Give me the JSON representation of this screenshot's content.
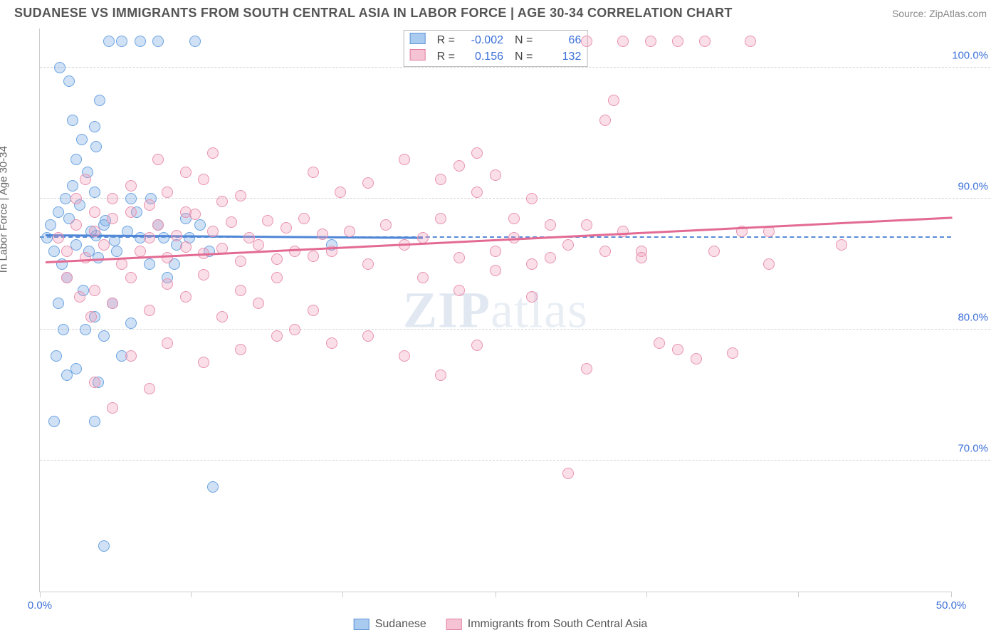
{
  "title": "SUDANESE VS IMMIGRANTS FROM SOUTH CENTRAL ASIA IN LABOR FORCE | AGE 30-34 CORRELATION CHART",
  "source": "Source: ZipAtlas.com",
  "ylabel": "In Labor Force | Age 30-34",
  "watermark_a": "ZIP",
  "watermark_b": "atlas",
  "chart": {
    "type": "scatter",
    "xlim": [
      0,
      50
    ],
    "ylim": [
      60,
      103
    ],
    "x_ticks": [
      0,
      8.3,
      16.6,
      25,
      33.3,
      41.6,
      50
    ],
    "x_tick_labels": {
      "0": "0.0%",
      "50": "50.0%"
    },
    "y_ticks": [
      70,
      80,
      90,
      100
    ],
    "y_tick_labels": {
      "70": "70.0%",
      "80": "80.0%",
      "90": "90.0%",
      "100": "100.0%"
    },
    "reference_y": 87,
    "background_color": "#ffffff",
    "grid_color": "#d5d5d5",
    "series": [
      {
        "name": "Sudanese",
        "label": "Sudanese",
        "color_fill": "rgba(120,170,230,0.35)",
        "color_stroke": "#6aa3e0",
        "swatch_fill": "#a9cbef",
        "swatch_border": "#5f95d6",
        "R": "-0.002",
        "N": "66",
        "trend": {
          "x0": 0.3,
          "y0": 87.3,
          "x1": 21,
          "y1": 87.1,
          "color": "#4f86d6"
        },
        "points": [
          [
            0.4,
            87
          ],
          [
            0.6,
            88
          ],
          [
            0.8,
            86
          ],
          [
            1.0,
            89
          ],
          [
            1.2,
            85
          ],
          [
            1.4,
            90
          ],
          [
            1.5,
            84
          ],
          [
            1.6,
            88.5
          ],
          [
            1.8,
            91
          ],
          [
            2.0,
            86.5
          ],
          [
            2.2,
            89.5
          ],
          [
            2.4,
            83
          ],
          [
            2.6,
            92
          ],
          [
            2.8,
            87.5
          ],
          [
            3.0,
            90.5
          ],
          [
            3.2,
            85.5
          ],
          [
            3.5,
            88
          ],
          [
            3.8,
            102
          ],
          [
            4.5,
            102
          ],
          [
            5.5,
            102
          ],
          [
            6.5,
            102
          ],
          [
            8.5,
            102
          ],
          [
            3.3,
            97.5
          ],
          [
            3.0,
            95.5
          ],
          [
            3.1,
            94
          ],
          [
            2.5,
            80
          ],
          [
            3.0,
            81
          ],
          [
            3.5,
            79.5
          ],
          [
            2.0,
            77
          ],
          [
            3.2,
            76
          ],
          [
            5.0,
            90
          ],
          [
            5.5,
            87
          ],
          [
            6.0,
            85
          ],
          [
            6.5,
            88
          ],
          [
            7.0,
            84
          ],
          [
            7.5,
            86.5
          ],
          [
            8.0,
            88.5
          ],
          [
            4.0,
            82
          ],
          [
            4.5,
            78
          ],
          [
            5.0,
            80.5
          ],
          [
            9.5,
            68
          ],
          [
            3.5,
            63.5
          ],
          [
            1.0,
            82
          ],
          [
            1.3,
            80
          ],
          [
            0.9,
            78
          ],
          [
            1.5,
            76.5
          ],
          [
            2.0,
            93
          ],
          [
            2.3,
            94.5
          ],
          [
            1.8,
            96
          ],
          [
            4.2,
            86
          ],
          [
            4.8,
            87.5
          ],
          [
            5.3,
            89
          ],
          [
            6.1,
            90
          ],
          [
            6.8,
            87
          ],
          [
            7.4,
            85
          ],
          [
            3.0,
            73
          ],
          [
            0.8,
            73
          ],
          [
            8.2,
            87
          ],
          [
            8.8,
            88
          ],
          [
            9.3,
            86
          ],
          [
            1.1,
            100
          ],
          [
            1.6,
            99
          ],
          [
            16,
            86.5
          ],
          [
            2.7,
            86
          ],
          [
            3.1,
            87.2
          ],
          [
            3.6,
            88.3
          ],
          [
            4.1,
            86.8
          ]
        ]
      },
      {
        "name": "Immigrants from South Central Asia",
        "label": "Immigrants from South Central Asia",
        "color_fill": "rgba(240,150,180,0.30)",
        "color_stroke": "#e892b0",
        "swatch_fill": "#f5c3d4",
        "swatch_border": "#e27fa4",
        "R": "0.156",
        "N": "132",
        "trend": {
          "x0": 0.3,
          "y0": 85.2,
          "x1": 50,
          "y1": 88.6,
          "color": "#e36a93"
        },
        "points": [
          [
            1,
            87
          ],
          [
            1.5,
            86
          ],
          [
            2,
            88
          ],
          [
            2.5,
            85.5
          ],
          [
            3,
            87.5
          ],
          [
            3.5,
            86.5
          ],
          [
            4,
            88.5
          ],
          [
            4.5,
            85
          ],
          [
            5,
            89
          ],
          [
            5.5,
            86
          ],
          [
            6,
            87
          ],
          [
            6.5,
            88
          ],
          [
            7,
            85.5
          ],
          [
            7.5,
            87.2
          ],
          [
            8,
            86.3
          ],
          [
            8.5,
            88.8
          ],
          [
            9,
            85.8
          ],
          [
            9.5,
            87.5
          ],
          [
            10,
            86.2
          ],
          [
            10.5,
            88.2
          ],
          [
            11,
            85.2
          ],
          [
            11.5,
            87
          ],
          [
            12,
            86.5
          ],
          [
            12.5,
            88.3
          ],
          [
            13,
            85.4
          ],
          [
            13.5,
            87.8
          ],
          [
            14,
            86
          ],
          [
            14.5,
            88.5
          ],
          [
            15,
            85.6
          ],
          [
            15.5,
            87.3
          ],
          [
            3,
            83
          ],
          [
            4,
            82
          ],
          [
            5,
            84
          ],
          [
            6,
            81.5
          ],
          [
            7,
            83.5
          ],
          [
            8,
            82.5
          ],
          [
            9,
            84.2
          ],
          [
            10,
            81
          ],
          [
            11,
            83
          ],
          [
            12,
            82
          ],
          [
            13,
            84
          ],
          [
            4,
            90
          ],
          [
            5,
            91
          ],
          [
            6,
            89.5
          ],
          [
            7,
            90.5
          ],
          [
            8,
            89
          ],
          [
            9,
            91.5
          ],
          [
            10,
            89.8
          ],
          [
            11,
            90.2
          ],
          [
            16,
            86
          ],
          [
            17,
            87.5
          ],
          [
            18,
            85
          ],
          [
            19,
            88
          ],
          [
            20,
            86.5
          ],
          [
            21,
            87
          ],
          [
            22,
            88.5
          ],
          [
            23,
            85.5
          ],
          [
            20,
            93
          ],
          [
            22,
            91.5
          ],
          [
            23,
            92.5
          ],
          [
            24,
            90.5
          ],
          [
            25,
            91.8
          ],
          [
            5,
            78
          ],
          [
            7,
            79
          ],
          [
            9,
            77.5
          ],
          [
            11,
            78.5
          ],
          [
            13,
            79.5
          ],
          [
            25,
            86
          ],
          [
            26,
            87
          ],
          [
            27,
            85
          ],
          [
            28,
            88
          ],
          [
            29,
            86.5
          ],
          [
            30,
            102
          ],
          [
            32,
            102
          ],
          [
            33.5,
            102
          ],
          [
            35,
            102
          ],
          [
            36.5,
            102
          ],
          [
            39,
            102
          ],
          [
            31,
            96
          ],
          [
            33,
            86
          ],
          [
            30,
            77
          ],
          [
            18,
            79.5
          ],
          [
            20,
            78
          ],
          [
            22,
            76.5
          ],
          [
            24,
            78.8
          ],
          [
            34,
            79
          ],
          [
            35,
            78.5
          ],
          [
            36,
            77.8
          ],
          [
            38,
            78.2
          ],
          [
            44,
            86.5
          ],
          [
            40,
            87.5
          ],
          [
            29,
            69
          ],
          [
            31.5,
            97.5
          ],
          [
            3,
            76
          ],
          [
            4,
            74
          ],
          [
            6,
            75.5
          ],
          [
            14,
            80
          ],
          [
            15,
            81.5
          ],
          [
            16,
            79
          ],
          [
            2,
            90
          ],
          [
            2.5,
            91.5
          ],
          [
            3,
            89
          ],
          [
            37,
            86
          ],
          [
            38.5,
            87.5
          ],
          [
            40,
            85
          ],
          [
            24,
            93.5
          ],
          [
            26,
            88.5
          ],
          [
            27,
            90
          ],
          [
            28,
            85.5
          ],
          [
            15,
            92
          ],
          [
            16.5,
            90.5
          ],
          [
            18,
            91.2
          ],
          [
            21,
            84
          ],
          [
            23,
            83
          ],
          [
            25,
            84.5
          ],
          [
            27,
            82.5
          ],
          [
            30,
            88
          ],
          [
            31,
            86
          ],
          [
            32,
            87.5
          ],
          [
            33,
            85.5
          ],
          [
            6.5,
            93
          ],
          [
            8,
            92
          ],
          [
            9.5,
            93.5
          ],
          [
            1.5,
            84
          ],
          [
            2.2,
            82.5
          ],
          [
            2.8,
            81
          ]
        ]
      }
    ]
  },
  "legend_bottom": [
    {
      "label": "Sudanese",
      "series": 0
    },
    {
      "label": "Immigrants from South Central Asia",
      "series": 1
    }
  ]
}
